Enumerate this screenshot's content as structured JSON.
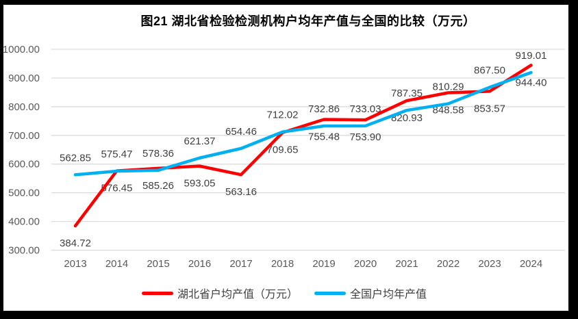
{
  "chart_data": {
    "type": "line",
    "title": "图21  湖北省检验检测机构户均年产值与全国的比较（万元）",
    "xlabel": "",
    "ylabel": "",
    "categories": [
      "2013",
      "2014",
      "2015",
      "2016",
      "2017",
      "2018",
      "2019",
      "2020",
      "2021",
      "2022",
      "2023",
      "2024"
    ],
    "series": [
      {
        "key": "hubei",
        "name": "湖北省户均产值（万元）",
        "color": "#FE0000",
        "label_position": "below",
        "values": [
          384.72,
          576.45,
          585.26,
          593.05,
          563.16,
          709.65,
          755.48,
          753.9,
          820.93,
          848.58,
          853.57,
          944.4
        ]
      },
      {
        "key": "national",
        "name": "全国户均年产值",
        "color": "#00B0F0",
        "label_position": "above",
        "values": [
          562.85,
          575.47,
          578.36,
          621.37,
          654.46,
          712.02,
          732.86,
          733.03,
          787.35,
          810.29,
          867.5,
          919.01
        ]
      }
    ],
    "ylim": [
      300,
      1000
    ],
    "ytick_step": 100,
    "ytick_labels": [
      "1000.00",
      "900.00",
      "800.00",
      "700.00",
      "600.00",
      "500.00",
      "400.00",
      "300.00"
    ],
    "grid": true,
    "data_labels": true,
    "legend_position": "bottom"
  },
  "colors": {
    "gridline": "#D9D9D9",
    "axis_text": "#595959",
    "data_label_text": "#3f3f3f",
    "frame": "#000000",
    "background": "#FFFFFF"
  }
}
